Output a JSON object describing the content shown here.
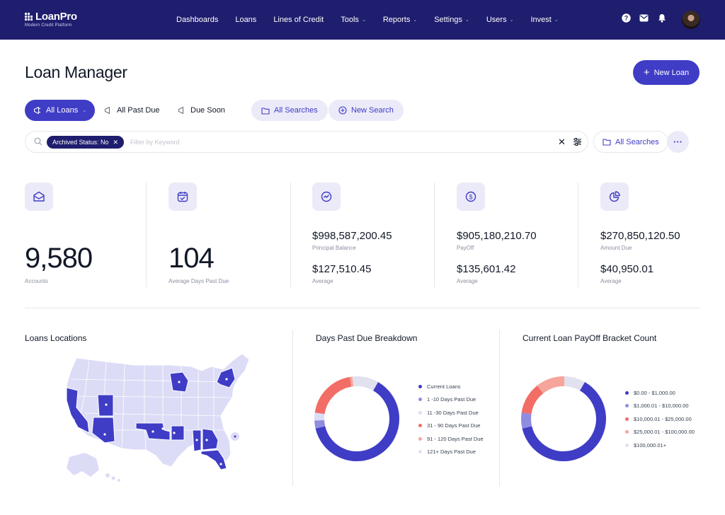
{
  "app": {
    "logo_name": "LoanPro",
    "logo_tagline": "Modern Credit Platform"
  },
  "nav": [
    {
      "label": "Dashboards",
      "dropdown": false
    },
    {
      "label": "Loans",
      "dropdown": false
    },
    {
      "label": "Lines of Credit",
      "dropdown": false
    },
    {
      "label": "Tools",
      "dropdown": true
    },
    {
      "label": "Reports",
      "dropdown": true
    },
    {
      "label": "Settings",
      "dropdown": true
    },
    {
      "label": "Users",
      "dropdown": true
    },
    {
      "label": "Invest",
      "dropdown": true
    }
  ],
  "header": {
    "title": "Loan Manager",
    "new_loan_label": "New Loan"
  },
  "tabs": {
    "all_loans": "All Loans",
    "all_past_due": "All Past Due",
    "due_soon": "Due Soon",
    "all_searches": "All Searches",
    "new_search": "New Search"
  },
  "search": {
    "chip": "Archived Status: No",
    "placeholder": "Filter by Keyword",
    "value": "",
    "all_searches": "All Searches"
  },
  "stats": {
    "accounts": {
      "value": "9,580",
      "label": "Accounts"
    },
    "days_past_due": {
      "value": "104",
      "label": "Average Days Past Due"
    },
    "principal": {
      "value": "$998,587,200.45",
      "label": "Principal Balance",
      "avg": "$127,510.45",
      "avg_label": "Average"
    },
    "payoff": {
      "value": "$905,180,210.70",
      "label": "PayOff",
      "avg": "$135,601.42",
      "avg_label": "Average"
    },
    "amount_due": {
      "value": "$270,850,120.50",
      "label": "Amount Due",
      "avg": "$40,950.01",
      "avg_label": "Average"
    }
  },
  "panels": {
    "locations_title": "Loans Locations",
    "dpd_title": "Days Past Due Breakdown",
    "payoff_title": "Current Loan PayOff Bracket Count"
  },
  "chart_data": [
    {
      "type": "pie",
      "title": "Days Past Due Breakdown",
      "categories": [
        "Current Loans",
        "1 -10 Days Past Due",
        "11 -30 Days Past Due",
        "31 - 90 Days Past Due",
        "91 - 120 Days Past Due",
        "121+ Days Past Due"
      ],
      "values": [
        63,
        3,
        3,
        20,
        1,
        10
      ],
      "colors": [
        "#3f3cc6",
        "#8f8de0",
        "#dcdcf7",
        "#f26d66",
        "#f7a59b",
        "#e1e1f0"
      ]
    },
    {
      "type": "pie",
      "title": "Current Loan PayOff Bracket Count",
      "categories": [
        "$0.00 - $1,000.00",
        "$1,000.01 - $10,000.00",
        "$10,000.01 - $25,000.00",
        "$25,000.01 - $100,000.00",
        "$100,000.01+"
      ],
      "values": [
        63,
        6,
        12,
        11,
        8
      ],
      "colors": [
        "#3f3cc6",
        "#8f8de0",
        "#f26d66",
        "#f7a59b",
        "#e1e1f0"
      ]
    }
  ]
}
